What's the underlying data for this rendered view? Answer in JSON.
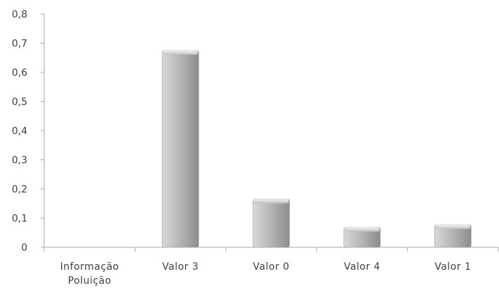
{
  "chart_data": {
    "type": "bar",
    "categories": [
      [
        "Informação",
        "Poluição"
      ],
      [
        "Valor 3"
      ],
      [
        "Valor 0"
      ],
      [
        "Valor 4"
      ],
      [
        "Valor 1"
      ]
    ],
    "values": [
      0,
      0.675,
      0.165,
      0.068,
      0.077
    ],
    "y_tick_values": [
      0,
      0.1,
      0.2,
      0.3,
      0.4,
      0.5,
      0.6,
      0.7,
      0.8
    ],
    "y_tick_labels": [
      "0",
      "0,1",
      "0,2",
      "0,3",
      "0,4",
      "0,5",
      "0,6",
      "0,7",
      "0,8"
    ],
    "ylim": [
      0,
      0.8
    ],
    "grid": false,
    "legend": "none",
    "bar_style": "3D gray gradient",
    "colors": {
      "bar_light": "#d9d9d9",
      "bar_mid": "#b8b8b8",
      "bar_dark": "#8c8c8c",
      "axis": "#a6a6a6",
      "text": "#404040"
    }
  }
}
